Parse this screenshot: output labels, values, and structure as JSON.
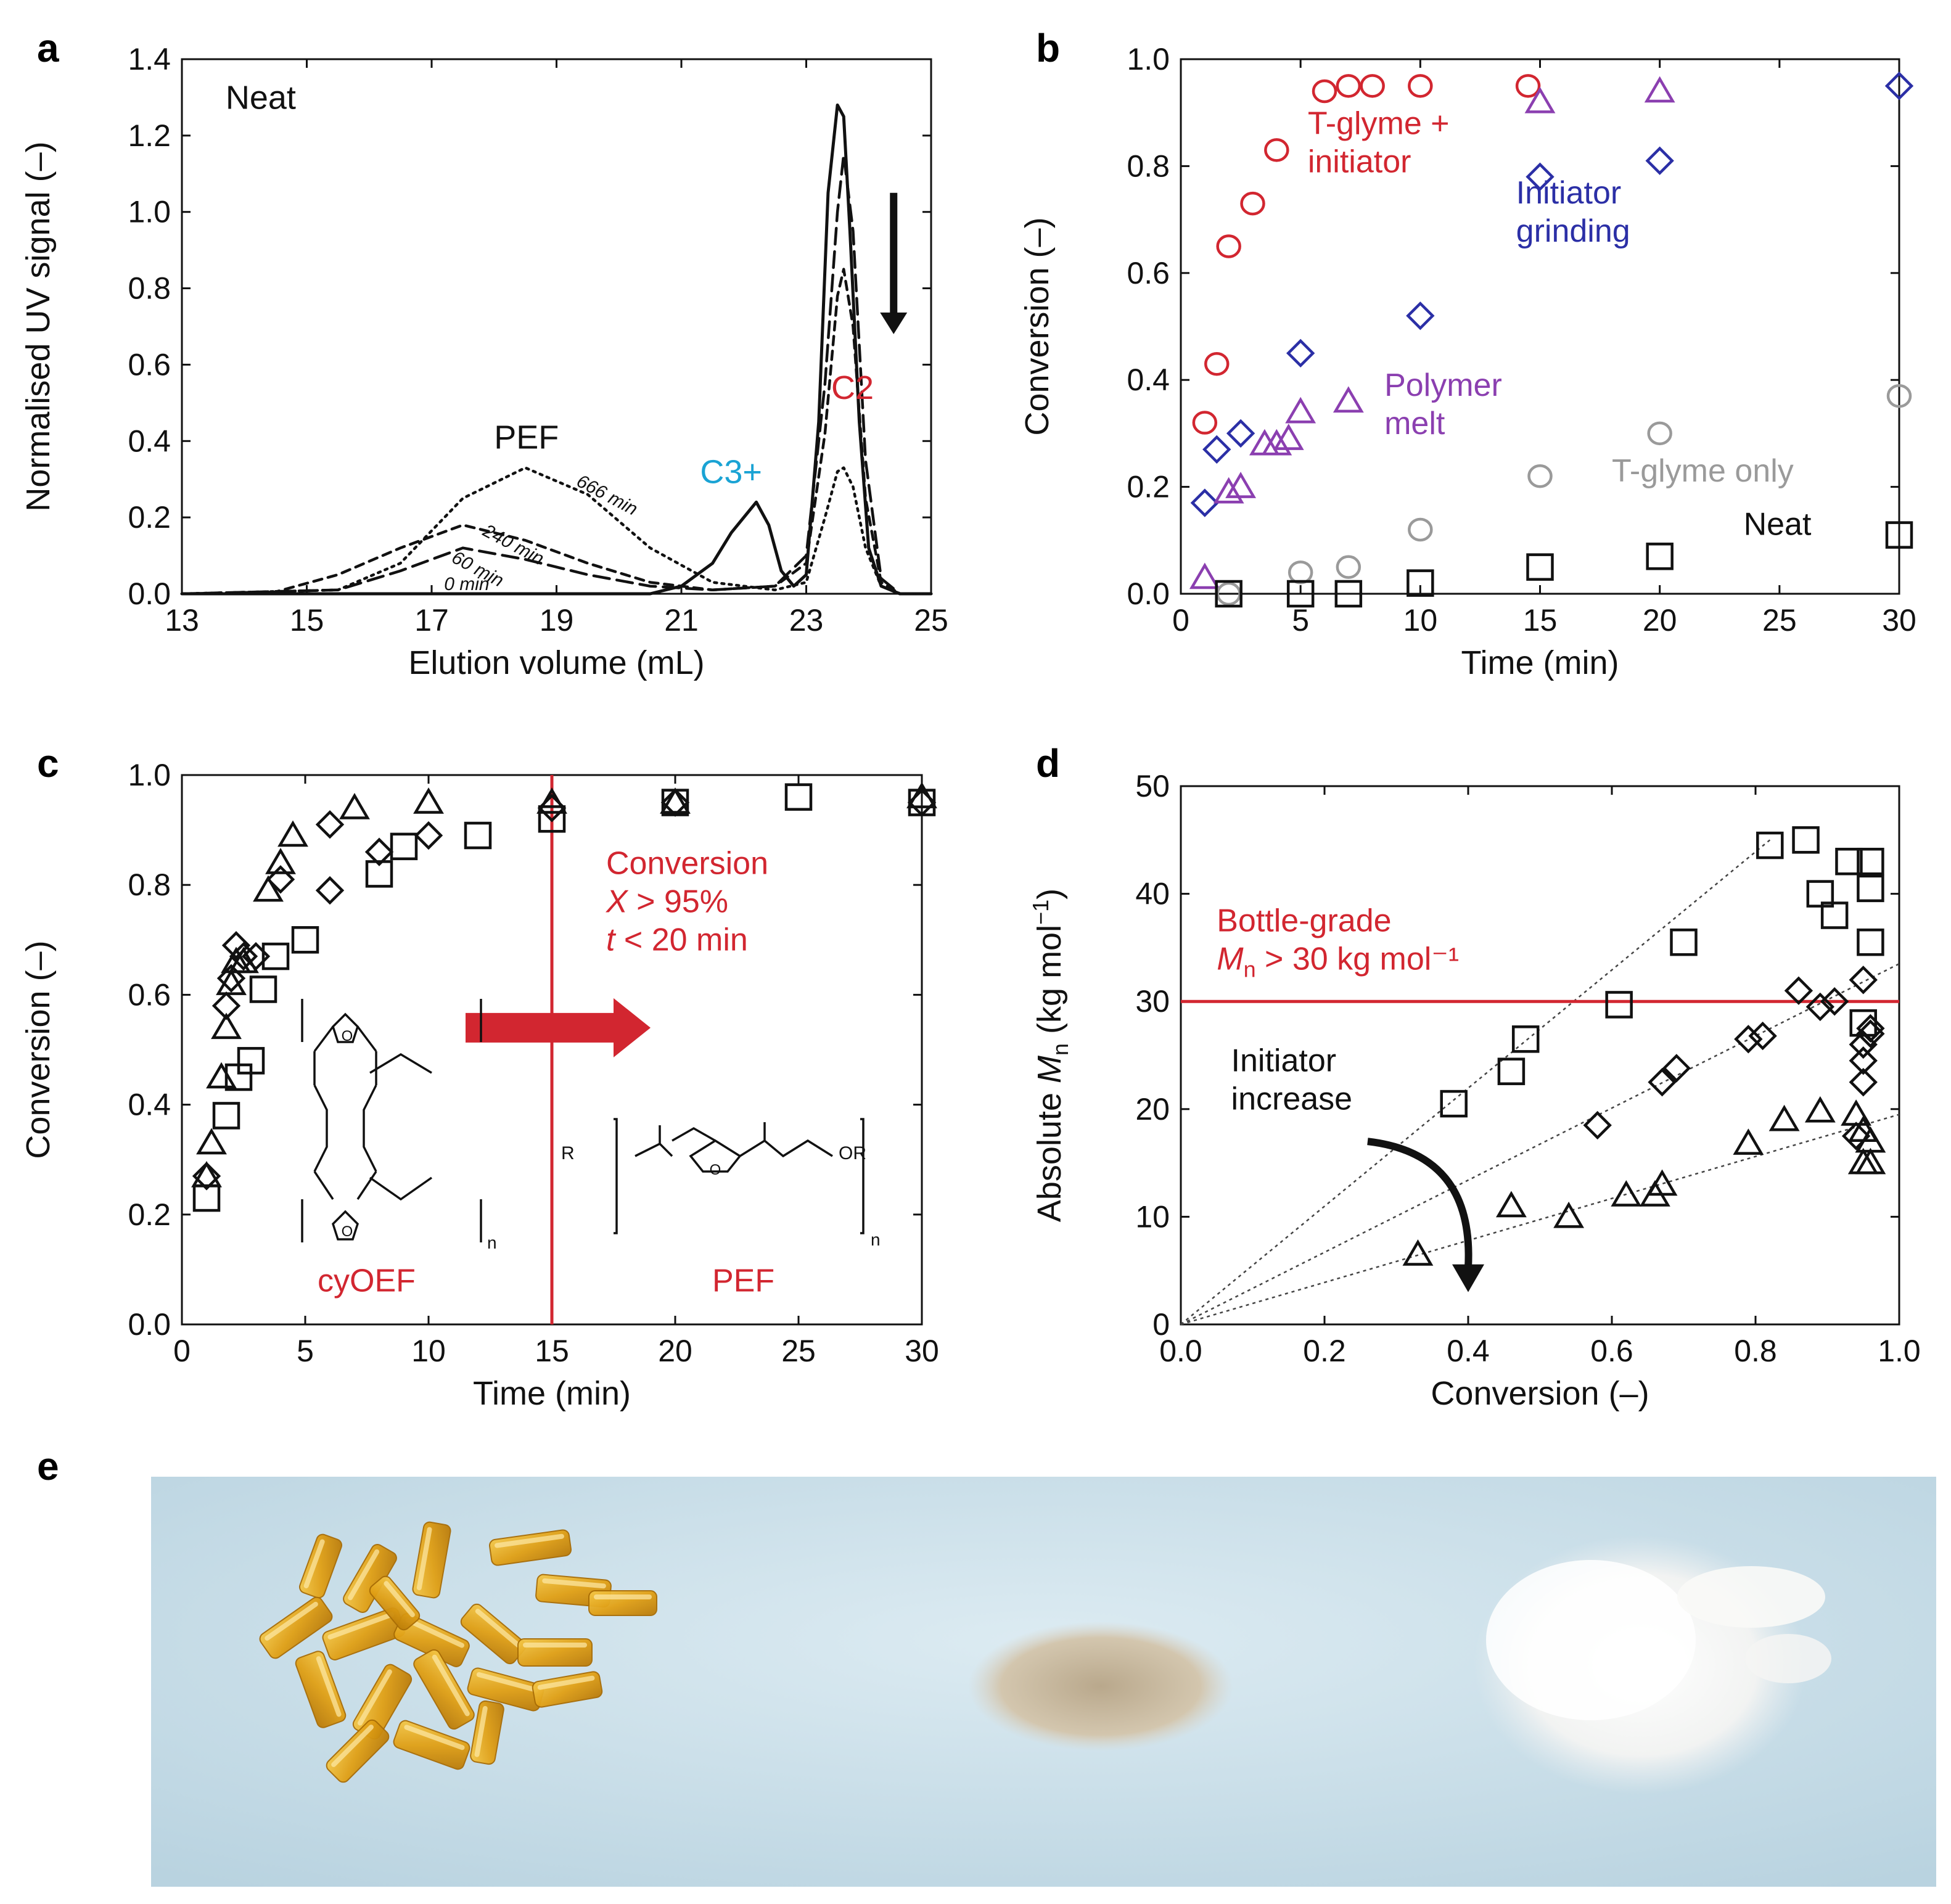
{
  "colors": {
    "red": "#d22630",
    "blue": "#2b2fa6",
    "purple": "#8b3fb0",
    "gray": "#9a9a9a",
    "cyan": "#1aa3d4",
    "black": "#111111",
    "photo_bg": "#c7dde8"
  },
  "chart_data": [
    {
      "id": "a",
      "panel_label": "a",
      "type": "line",
      "title": "",
      "xlabel": "Elution volume (mL)",
      "ylabel": "Normalised UV signal (–)",
      "xlim": [
        13,
        25
      ],
      "ylim": [
        0,
        1.4
      ],
      "xticks": [
        13,
        15,
        17,
        19,
        21,
        23,
        25
      ],
      "yticks": [
        0,
        0.2,
        0.4,
        0.6,
        0.8,
        1.0,
        1.2,
        1.4
      ],
      "ytick_labels": [
        "0.0",
        "0.2",
        "0.4",
        "0.6",
        "0.8",
        "1.0",
        "1.2",
        "1.4"
      ],
      "series": [
        {
          "name": "0 min",
          "style": "solid",
          "x": [
            13,
            20.5,
            21,
            21.5,
            21.8,
            22.0,
            22.2,
            22.4,
            22.6,
            22.8,
            23.0,
            23.2,
            23.35,
            23.5,
            23.6,
            23.7,
            23.85,
            24.0,
            24.2,
            24.5,
            25
          ],
          "y": [
            0,
            0,
            0.02,
            0.08,
            0.16,
            0.2,
            0.24,
            0.18,
            0.06,
            0.02,
            0.05,
            0.45,
            1.05,
            1.28,
            1.25,
            0.95,
            0.45,
            0.12,
            0.02,
            0,
            0
          ]
        },
        {
          "name": "60 min",
          "style": "longdash",
          "x": [
            13,
            15.5,
            16.5,
            17.5,
            18.5,
            19.5,
            20.5,
            21.5,
            22.5,
            23.0,
            23.3,
            23.5,
            23.6,
            23.75,
            23.95,
            24.2,
            24.5,
            25
          ],
          "y": [
            0,
            0.01,
            0.06,
            0.12,
            0.09,
            0.05,
            0.02,
            0.01,
            0.02,
            0.1,
            0.55,
            1.0,
            1.15,
            0.95,
            0.35,
            0.04,
            0,
            0
          ]
        },
        {
          "name": "240 min",
          "style": "dash",
          "x": [
            13,
            14.5,
            15.5,
            16.5,
            17.5,
            18.5,
            19.5,
            20.5,
            21.5,
            22.5,
            23.0,
            23.3,
            23.5,
            23.6,
            23.75,
            23.95,
            24.2,
            24.5,
            25
          ],
          "y": [
            0,
            0.005,
            0.05,
            0.12,
            0.18,
            0.14,
            0.08,
            0.03,
            0.01,
            0.02,
            0.08,
            0.42,
            0.78,
            0.85,
            0.7,
            0.25,
            0.03,
            0,
            0
          ]
        },
        {
          "name": "666 min",
          "style": "dot",
          "x": [
            13,
            15.5,
            16.5,
            17.5,
            18.5,
            19.5,
            20.5,
            21.5,
            22.5,
            23.0,
            23.3,
            23.5,
            23.6,
            23.75,
            23.95,
            24.2,
            24.5,
            25
          ],
          "y": [
            0,
            0.01,
            0.08,
            0.25,
            0.33,
            0.26,
            0.12,
            0.03,
            0.01,
            0.03,
            0.2,
            0.32,
            0.33,
            0.28,
            0.12,
            0.02,
            0,
            0
          ]
        }
      ],
      "curve_labels": [
        {
          "text": "666 min",
          "x": 19.3,
          "y": 0.285
        },
        {
          "text": "240 min",
          "x": 17.8,
          "y": 0.155
        },
        {
          "text": "60 min",
          "x": 17.3,
          "y": 0.085
        },
        {
          "text": "0 min",
          "x": 17.2,
          "y": 0.01
        }
      ],
      "annotations": [
        {
          "text": "Neat",
          "x": 13.7,
          "y": 1.27,
          "color": "black"
        },
        {
          "text": "PEF",
          "x": 18.0,
          "y": 0.38,
          "color": "black"
        },
        {
          "text": "C3+",
          "x": 21.3,
          "y": 0.29,
          "color": "cyan"
        },
        {
          "text": "C2",
          "x": 23.4,
          "y": 0.51,
          "color": "red"
        }
      ],
      "arrow": {
        "direction": "down",
        "x": 24.4,
        "y_from": 1.05,
        "y_to": 0.68
      }
    },
    {
      "id": "b",
      "panel_label": "b",
      "type": "scatter",
      "xlabel": "Time (min)",
      "ylabel": "Conversion (–)",
      "xlim": [
        0,
        30
      ],
      "ylim": [
        0,
        1.0
      ],
      "xticks": [
        0,
        5,
        10,
        15,
        20,
        25,
        30
      ],
      "yticks": [
        0,
        0.2,
        0.4,
        0.6,
        0.8,
        1.0
      ],
      "ytick_labels": [
        "0.0",
        "0.2",
        "0.4",
        "0.6",
        "0.8",
        "1.0"
      ],
      "series": [
        {
          "name": "T-glyme + initiator",
          "marker": "circle",
          "color": "red",
          "x": [
            1,
            1.5,
            2,
            3,
            4,
            6,
            7,
            8,
            10,
            14.5
          ],
          "y": [
            0.32,
            0.43,
            0.65,
            0.73,
            0.83,
            0.94,
            0.95,
            0.95,
            0.95,
            0.95
          ]
        },
        {
          "name": "Initiator grinding",
          "marker": "diamond",
          "color": "blue",
          "x": [
            1,
            1.5,
            2.5,
            5,
            10,
            15,
            20,
            30
          ],
          "y": [
            0.17,
            0.27,
            0.3,
            0.45,
            0.52,
            0.78,
            0.81,
            0.95
          ]
        },
        {
          "name": "Polymer melt",
          "marker": "triangle",
          "color": "purple",
          "x": [
            1,
            2,
            2.5,
            3.5,
            4,
            4.5,
            5,
            7,
            15,
            20
          ],
          "y": [
            0.03,
            0.19,
            0.2,
            0.28,
            0.28,
            0.29,
            0.34,
            0.36,
            0.92,
            0.94
          ]
        },
        {
          "name": "T-glyme only",
          "marker": "circle",
          "color": "gray",
          "x": [
            2,
            5,
            7,
            10,
            15,
            20,
            30
          ],
          "y": [
            0.0,
            0.04,
            0.05,
            0.12,
            0.22,
            0.3,
            0.37
          ]
        },
        {
          "name": "Neat",
          "marker": "square",
          "color": "black",
          "x": [
            2,
            5,
            7,
            10,
            15,
            20,
            30
          ],
          "y": [
            0.0,
            0.0,
            0.0,
            0.02,
            0.05,
            0.07,
            0.11
          ]
        }
      ],
      "annotations": [
        {
          "lines": [
            "T-glyme +",
            "initiator"
          ],
          "x": 5.3,
          "y": 0.86,
          "color": "red"
        },
        {
          "lines": [
            "Initiator",
            "grinding"
          ],
          "x": 14.0,
          "y": 0.73,
          "color": "blue"
        },
        {
          "lines": [
            "Polymer",
            "melt"
          ],
          "x": 8.5,
          "y": 0.37,
          "color": "purple"
        },
        {
          "lines": [
            "T-glyme only"
          ],
          "x": 18.0,
          "y": 0.21,
          "color": "gray"
        },
        {
          "lines": [
            "Neat"
          ],
          "x": 23.5,
          "y": 0.11,
          "color": "black"
        }
      ]
    },
    {
      "id": "c",
      "panel_label": "c",
      "type": "scatter",
      "xlabel": "Time (min)",
      "ylabel": "Conversion (–)",
      "xlim": [
        0,
        30
      ],
      "ylim": [
        0,
        1.0
      ],
      "xticks": [
        0,
        5,
        10,
        15,
        20,
        25,
        30
      ],
      "yticks": [
        0,
        0.2,
        0.4,
        0.6,
        0.8,
        1.0
      ],
      "ytick_labels": [
        "0.0",
        "0.2",
        "0.4",
        "0.6",
        "0.8",
        "1.0"
      ],
      "series": [
        {
          "name": "squares",
          "marker": "square",
          "color": "black",
          "x": [
            1,
            1.8,
            2.3,
            2.8,
            3.3,
            3.8,
            5,
            8,
            9,
            12,
            15,
            20,
            25,
            30
          ],
          "y": [
            0.23,
            0.38,
            0.45,
            0.48,
            0.61,
            0.67,
            0.7,
            0.82,
            0.87,
            0.89,
            0.92,
            0.95,
            0.96,
            0.95
          ]
        },
        {
          "name": "triangles",
          "marker": "triangle",
          "color": "black",
          "x": [
            1,
            1.2,
            1.6,
            1.8,
            2.0,
            2.2,
            2.5,
            3.5,
            4,
            4.5,
            7,
            10,
            15,
            20,
            30
          ],
          "y": [
            0.27,
            0.33,
            0.45,
            0.54,
            0.62,
            0.66,
            0.66,
            0.79,
            0.84,
            0.89,
            0.94,
            0.95,
            0.95,
            0.95,
            0.96
          ]
        },
        {
          "name": "diamonds",
          "marker": "diamond",
          "color": "black",
          "x": [
            1,
            1.8,
            2,
            2.2,
            2.5,
            3,
            4,
            6,
            6,
            8,
            10,
            15,
            20,
            30
          ],
          "y": [
            0.27,
            0.58,
            0.63,
            0.69,
            0.67,
            0.67,
            0.81,
            0.79,
            0.91,
            0.86,
            0.89,
            0.94,
            0.95,
            0.95
          ]
        }
      ],
      "vline_x": 15,
      "annotations": [
        {
          "lines": [
            "Conversion",
            "X > 95%",
            "t < 20 min"
          ],
          "x": 17.2,
          "y": 0.82,
          "color": "red"
        },
        {
          "lines": [
            "cyOEF"
          ],
          "x": 5.5,
          "y": 0.06,
          "color": "red"
        },
        {
          "lines": [
            "PEF"
          ],
          "x": 21.5,
          "y": 0.06,
          "color": "red"
        }
      ],
      "arrow": {
        "x_from": 11.5,
        "x_to": 19,
        "y": 0.54
      },
      "structures": {
        "ring": "O",
        "subscript": "n",
        "end_group": "R",
        "end_group_right": "OR"
      }
    },
    {
      "id": "d",
      "panel_label": "d",
      "type": "scatter",
      "xlabel": "Conversion (–)",
      "ylabel": "Absolute Mn (kg mol⁻¹)",
      "xlim": [
        0,
        1.0
      ],
      "ylim": [
        0,
        50
      ],
      "xticks": [
        0,
        0.2,
        0.4,
        0.6,
        0.8,
        1.0
      ],
      "xtick_labels": [
        "0.0",
        "0.2",
        "0.4",
        "0.6",
        "0.8",
        "1.0"
      ],
      "yticks": [
        0,
        10,
        20,
        30,
        40,
        50
      ],
      "hline_y": 30,
      "series": [
        {
          "name": "squares",
          "marker": "square",
          "color": "black",
          "x": [
            0.38,
            0.46,
            0.48,
            0.61,
            0.7,
            0.82,
            0.87,
            0.89,
            0.91,
            0.93,
            0.96,
            0.96,
            0.96,
            0.95
          ],
          "y": [
            20.5,
            23.5,
            26.5,
            29.7,
            35.5,
            44.5,
            45.0,
            40.0,
            38.0,
            43.0,
            43.0,
            40.5,
            35.5,
            28.0
          ]
        },
        {
          "name": "diamonds",
          "marker": "diamond",
          "color": "black",
          "x": [
            0.58,
            0.67,
            0.69,
            0.79,
            0.81,
            0.86,
            0.89,
            0.91,
            0.95,
            0.95,
            0.96,
            0.96,
            0.95,
            0.95,
            0.94
          ],
          "y": [
            18.5,
            22.5,
            23.8,
            26.5,
            26.8,
            31.0,
            29.5,
            30.0,
            32.0,
            26.0,
            27.0,
            27.5,
            24.5,
            22.5,
            17.5
          ]
        },
        {
          "name": "triangles",
          "marker": "triangle",
          "color": "black",
          "x": [
            0.33,
            0.46,
            0.54,
            0.62,
            0.66,
            0.67,
            0.79,
            0.84,
            0.89,
            0.94,
            0.95,
            0.96,
            0.95,
            0.96
          ],
          "y": [
            6.5,
            11.0,
            10.0,
            12.0,
            12.0,
            13.0,
            16.8,
            19.0,
            19.8,
            19.5,
            18.0,
            17.0,
            15.0,
            15.0
          ]
        }
      ],
      "trend_lines": [
        {
          "from": [
            0,
            0
          ],
          "to": [
            0.82,
            45
          ]
        },
        {
          "from": [
            0,
            0
          ],
          "to": [
            1.0,
            33.5
          ]
        },
        {
          "from": [
            0,
            0
          ],
          "to": [
            1.0,
            19.5
          ]
        }
      ],
      "annotations": [
        {
          "lines": [
            "Bottle-grade",
            "Mn > 30 kg mol⁻¹"
          ],
          "x": 0.05,
          "y": 36.5,
          "color": "red"
        },
        {
          "lines": [
            "Initiator",
            "increase"
          ],
          "x": 0.07,
          "y": 23.5,
          "color": "black"
        }
      ],
      "arrow": {
        "from": [
          0.26,
          17.0
        ],
        "to": [
          0.4,
          3.0
        ]
      }
    }
  ],
  "panel_e": {
    "label": "e",
    "items": [
      {
        "name": "pellets",
        "color": "#e1a51c"
      },
      {
        "name": "beige-powder",
        "color": "#cdbfa6"
      },
      {
        "name": "white-powder",
        "color": "#f4f4f2"
      }
    ]
  }
}
